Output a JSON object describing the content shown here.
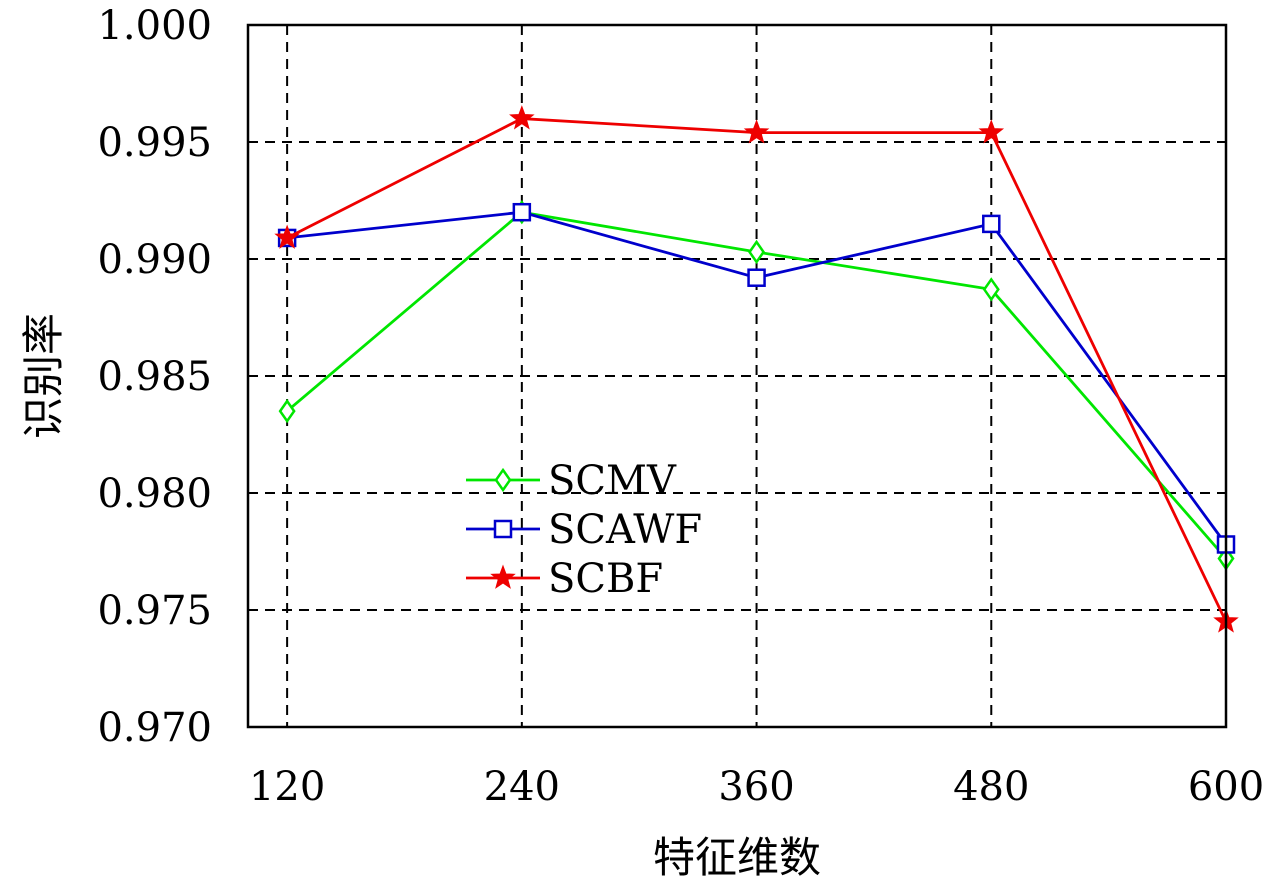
{
  "chart_data": {
    "type": "line",
    "title": "",
    "xlabel": "特征维数",
    "ylabel": "识别率",
    "x": [
      120,
      240,
      360,
      480,
      600
    ],
    "x_tick_labels": [
      "120",
      "240",
      "360",
      "480",
      "600"
    ],
    "y_tick_values": [
      0.97,
      0.975,
      0.98,
      0.985,
      0.99,
      0.995,
      1.0
    ],
    "y_tick_labels": [
      "0.970",
      "0.975",
      "0.980",
      "0.985",
      "0.990",
      "0.995",
      "1.000"
    ],
    "xlim": [
      100,
      600
    ],
    "ylim": [
      0.97,
      1.0
    ],
    "grid": true,
    "grid_style": "dashed",
    "legend_position": "center-left",
    "series": [
      {
        "name": "SCMV",
        "color": "#00e600",
        "marker": "diamond",
        "values": [
          0.9835,
          0.992,
          0.9903,
          0.9887,
          0.9772
        ]
      },
      {
        "name": "SCAWF",
        "color": "#0000cc",
        "marker": "square",
        "values": [
          0.9909,
          0.992,
          0.9892,
          0.9915,
          0.9778
        ]
      },
      {
        "name": "SCBF",
        "color": "#ee0000",
        "marker": "star",
        "values": [
          0.9909,
          0.996,
          0.9954,
          0.9954,
          0.9745
        ]
      }
    ]
  }
}
